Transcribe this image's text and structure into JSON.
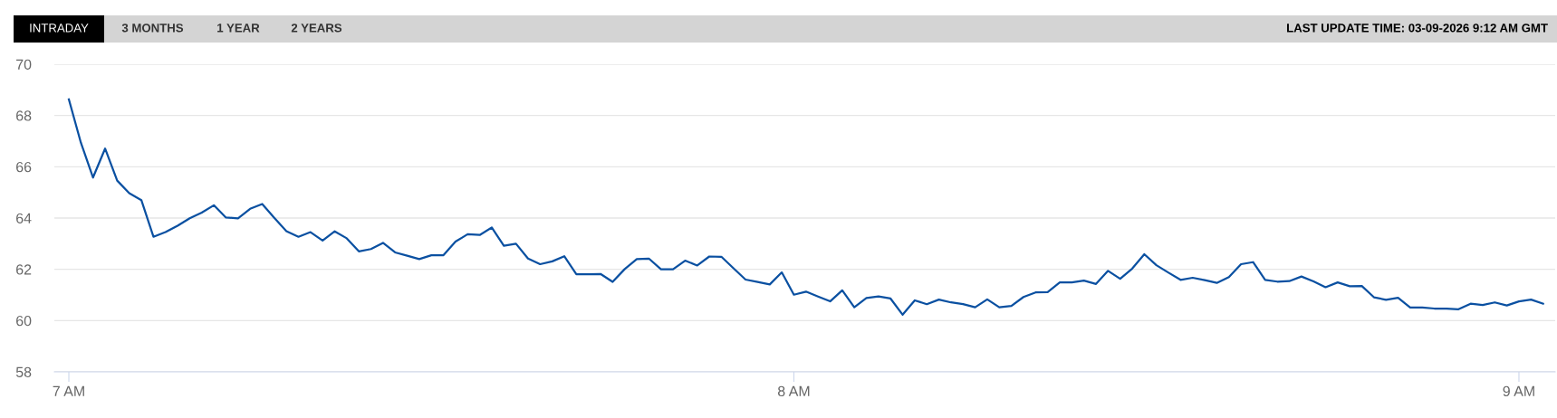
{
  "chart_data": {
    "type": "line",
    "subtitle": "LAST UPDATE TIME: 03-09-2026 9:12 AM GMT",
    "annotations": [
      "INTRADAY",
      "3 MONTHS",
      "1 YEAR",
      "2 YEARS"
    ],
    "x": [
      7,
      7.0167,
      7.0333,
      7.05,
      7.0667,
      7.0833,
      7.1,
      7.1167,
      7.1333,
      7.15,
      7.1667,
      7.1833,
      7.2,
      7.2167,
      7.2333,
      7.25,
      7.2667,
      7.2833,
      7.3,
      7.3167,
      7.3333,
      7.35,
      7.3667,
      7.3833,
      7.4,
      7.4167,
      7.4333,
      7.45,
      7.4667,
      7.4833,
      7.5,
      7.5167,
      7.5333,
      7.55,
      7.5667,
      7.5833,
      7.6,
      7.6167,
      7.6333,
      7.65,
      7.6667,
      7.6833,
      7.7,
      7.7167,
      7.7333,
      7.75,
      7.7667,
      7.7833,
      7.8,
      7.8167,
      7.8333,
      7.85,
      7.8667,
      7.8833,
      7.9,
      7.9167,
      7.9333,
      7.95,
      7.9667,
      7.9833,
      8,
      8.0167,
      8.0333,
      8.05,
      8.0667,
      8.0833,
      8.1,
      8.1167,
      8.1333,
      8.15,
      8.1667,
      8.1833,
      8.2,
      8.2167,
      8.2333,
      8.25,
      8.2667,
      8.2833,
      8.3,
      8.3167,
      8.3333,
      8.35,
      8.3667,
      8.3833,
      8.4,
      8.4167,
      8.4333,
      8.45,
      8.4667,
      8.4833,
      8.5,
      8.5167,
      8.5333,
      8.55,
      8.5667,
      8.5833,
      8.6,
      8.6167,
      8.6333,
      8.65,
      8.6667,
      8.6833,
      8.7,
      8.7167,
      8.7333,
      8.75,
      8.7667,
      8.7833,
      8.8,
      8.8167,
      8.8333,
      8.85,
      8.8667,
      8.8833,
      8.9,
      8.9167,
      8.9333,
      8.95,
      8.9667,
      8.9833,
      9,
      9.0167,
      9.0333
    ],
    "series": [
      {
        "color": "#0a50a1",
        "values": [
          68.63,
          66.93,
          65.58,
          66.71,
          65.46,
          64.97,
          64.7,
          63.27,
          63.45,
          63.7,
          63.99,
          64.21,
          64.5,
          64.02,
          63.99,
          64.36,
          64.55,
          64.01,
          63.49,
          63.27,
          63.45,
          63.12,
          63.48,
          63.21,
          62.7,
          62.79,
          63.03,
          62.66,
          62.53,
          62.4,
          62.55,
          62.55,
          63.08,
          63.37,
          63.34,
          63.63,
          62.92,
          63.0,
          62.42,
          62.2,
          62.31,
          62.51,
          61.81,
          61.81,
          61.82,
          61.51,
          62.01,
          62.4,
          62.42,
          62.0,
          62.0,
          62.34,
          62.15,
          62.5,
          62.49,
          62.04,
          61.6,
          61.51,
          61.41,
          61.88,
          61.01,
          61.13,
          60.94,
          60.75,
          61.18,
          60.52,
          60.88,
          60.94,
          60.86,
          60.23,
          60.79,
          60.64,
          60.82,
          60.71,
          60.64,
          60.52,
          60.83,
          60.52,
          60.57,
          60.92,
          61.1,
          61.11,
          61.49,
          61.49,
          61.56,
          61.43,
          61.94,
          61.63,
          62.03,
          62.59,
          62.16,
          61.87,
          61.59,
          61.67,
          61.58,
          61.47,
          61.7,
          62.2,
          62.28,
          61.59,
          61.52,
          61.54,
          61.72,
          61.53,
          61.3,
          61.49,
          61.34,
          61.35,
          60.91,
          60.81,
          60.89,
          60.51,
          60.51,
          60.47,
          60.47,
          60.44,
          60.66,
          60.61,
          60.71,
          60.59,
          60.75,
          60.82,
          60.66
        ]
      }
    ],
    "xlim": [
      6.98,
      9.05
    ],
    "xticks": [
      {
        "value": 7,
        "label": "7 AM"
      },
      {
        "value": 8,
        "label": "8 AM"
      },
      {
        "value": 9,
        "label": "9 AM"
      }
    ],
    "ylim": [
      58,
      70
    ],
    "yticks": [
      58,
      60,
      62,
      64,
      66,
      68,
      70
    ],
    "grid": "y",
    "marker": "none",
    "line_style": "solid"
  }
}
